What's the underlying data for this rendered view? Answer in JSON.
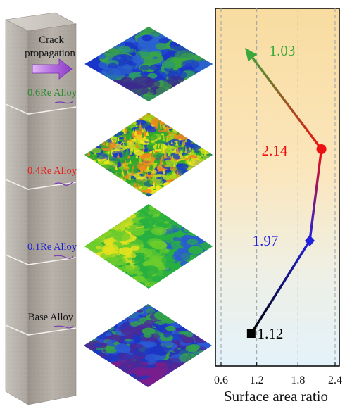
{
  "column": {
    "caption_lines": [
      "Crack",
      "propagation"
    ],
    "labels": [
      {
        "text": "0.6Re Alloy",
        "color": "#2e8b2e"
      },
      {
        "text": "0.4Re Alloy",
        "color": "#e8201a"
      },
      {
        "text": "0.1Re Alloy",
        "color": "#2020d0"
      },
      {
        "text": "Base Alloy",
        "color": "#111111"
      }
    ]
  },
  "surfaces": [
    {
      "alloy": "0.6Re Alloy",
      "texture": "smooth",
      "palette": [
        "#1a36c8",
        "#2a62d0",
        "#2c9a6a",
        "#3aa840",
        "#3c2a8c"
      ]
    },
    {
      "alloy": "0.4Re Alloy",
      "texture": "rough",
      "palette": [
        "#2ea82e",
        "#a6d81a",
        "#f0e81c",
        "#f28a1c",
        "#1a3ac8"
      ]
    },
    {
      "alloy": "0.1Re Alloy",
      "texture": "medium",
      "palette": [
        "#28b040",
        "#6ccc2c",
        "#e4e21e",
        "#2a5cd0",
        "#5a2a9c"
      ]
    },
    {
      "alloy": "Base Alloy",
      "texture": "medium",
      "palette": [
        "#1c36c4",
        "#2a5ad4",
        "#32a44a",
        "#4a2a98",
        "#7a1e8c"
      ]
    }
  ],
  "chart_data": {
    "type": "line",
    "xlabel": "Surface area ratio",
    "xlim": [
      0.6,
      2.4
    ],
    "xticks": [
      0.6,
      1.2,
      1.8,
      2.4
    ],
    "xtick_labels": [
      "0.6",
      "1.2",
      "1.8",
      "2.4"
    ],
    "grid": "vertical-dashed",
    "points": [
      {
        "alloy": "Base Alloy",
        "value": 1.12,
        "label": "1.12",
        "marker": "square",
        "color": "#000000"
      },
      {
        "alloy": "0.1Re Alloy",
        "value": 1.97,
        "label": "1.97",
        "marker": "diamond",
        "color": "#2222dd"
      },
      {
        "alloy": "0.4Re Alloy",
        "value": 2.14,
        "label": "2.14",
        "marker": "circle",
        "color": "#ee1111"
      },
      {
        "alloy": "0.6Re Alloy",
        "value": 1.03,
        "label": "1.03",
        "marker": "arrow",
        "color": "#3aa83a"
      }
    ]
  }
}
